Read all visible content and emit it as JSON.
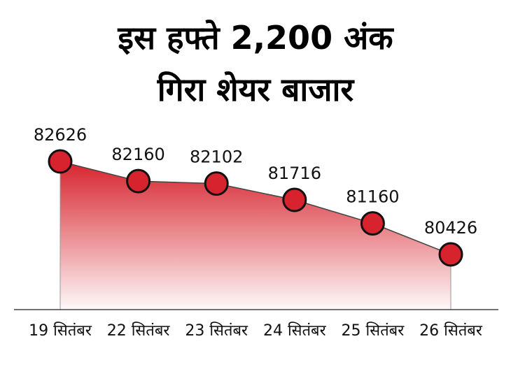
{
  "chart_data": {
    "type": "area",
    "title": [
      "इस हफ्ते 2,200 अंक",
      "गिरा शेयर बाजार"
    ],
    "categories": [
      "19 सितंबर",
      "22 सितंबर",
      "23 सितंबर",
      "24 सितंबर",
      "25 सितंबर",
      "26 सितंबर"
    ],
    "values": [
      82626,
      82160,
      82102,
      81716,
      81160,
      80426
    ],
    "color": "#d7232d"
  }
}
